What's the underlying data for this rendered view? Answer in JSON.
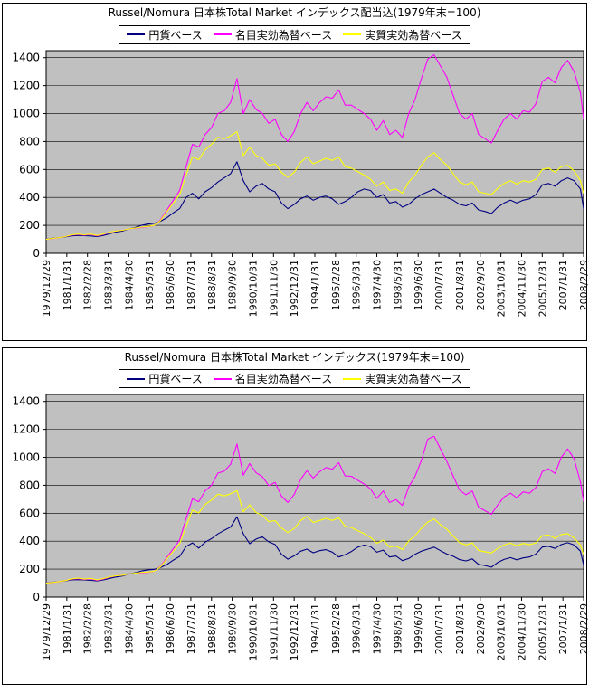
{
  "page": {
    "background": "#ffffff"
  },
  "chart_data": [
    {
      "type": "line",
      "title": "Russel/Nomura 日本株Total Market インデックス配当込(1979年末=100)",
      "plot_bg": "#c0c0c0",
      "grid": "on",
      "legend_position": "top",
      "ylim": [
        0,
        1450
      ],
      "yticks": [
        0,
        200,
        400,
        600,
        800,
        1000,
        1200,
        1400
      ],
      "xtick_step_months": 13,
      "xtick_labels": [
        "1979/12/29",
        "1981/1/31",
        "1982/2/28",
        "1983/3/31",
        "1984/4/30",
        "1985/5/31",
        "1986/6/30",
        "1987/7/31",
        "1988/8/31",
        "1989/9/30",
        "1990/10/31",
        "1991/11/30",
        "1992/12/31",
        "1994/1/31",
        "1995/2/28",
        "1996/3/31",
        "1997/4/30",
        "1998/5/31",
        "1999/6/30",
        "2000/7/31",
        "2001/8/31",
        "2002/9/30",
        "2003/10/31",
        "2004/11/30",
        "2005/12/31",
        "2007/1/31",
        "2008/2/29"
      ],
      "x_months": [
        0,
        4,
        8,
        12,
        16,
        20,
        24,
        28,
        32,
        36,
        40,
        44,
        48,
        52,
        56,
        60,
        64,
        68,
        72,
        76,
        80,
        84,
        88,
        92,
        96,
        100,
        104,
        108,
        112,
        116,
        120,
        124,
        128,
        132,
        136,
        140,
        144,
        148,
        152,
        156,
        160,
        164,
        168,
        172,
        176,
        180,
        184,
        188,
        192,
        196,
        200,
        204,
        208,
        212,
        216,
        220,
        224,
        228,
        232,
        236,
        240,
        244,
        248,
        252,
        256,
        260,
        264,
        268,
        272,
        276,
        280,
        284,
        288,
        292,
        296,
        300,
        304,
        308,
        312,
        316,
        320,
        324,
        328,
        332,
        336,
        338
      ],
      "series": [
        {
          "name": "円貨ベース",
          "color": "#000080",
          "values": [
            100,
            108,
            112,
            118,
            125,
            128,
            126,
            124,
            120,
            128,
            140,
            152,
            160,
            175,
            185,
            200,
            210,
            215,
            230,
            255,
            290,
            320,
            400,
            430,
            390,
            440,
            470,
            510,
            540,
            570,
            655,
            520,
            440,
            480,
            500,
            460,
            440,
            360,
            320,
            350,
            390,
            410,
            380,
            400,
            410,
            390,
            350,
            370,
            400,
            440,
            460,
            450,
            400,
            420,
            360,
            370,
            330,
            350,
            390,
            420,
            440,
            460,
            430,
            400,
            380,
            350,
            340,
            360,
            310,
            300,
            285,
            330,
            360,
            380,
            360,
            380,
            390,
            420,
            490,
            500,
            480,
            520,
            540,
            520,
            460,
            320
          ]
        },
        {
          "name": "名目実効為替ベース",
          "color": "#ff00ff",
          "values": [
            100,
            105,
            112,
            120,
            130,
            135,
            130,
            135,
            125,
            135,
            150,
            160,
            165,
            175,
            180,
            185,
            190,
            200,
            240,
            310,
            380,
            450,
            620,
            780,
            760,
            850,
            900,
            1000,
            1020,
            1080,
            1250,
            1000,
            1100,
            1030,
            1000,
            930,
            960,
            850,
            800,
            870,
            1000,
            1080,
            1020,
            1080,
            1120,
            1110,
            1170,
            1060,
            1060,
            1030,
            1000,
            960,
            880,
            950,
            850,
            880,
            830,
            1000,
            1100,
            1250,
            1390,
            1420,
            1340,
            1260,
            1130,
            1000,
            960,
            1000,
            850,
            820,
            790,
            880,
            960,
            1000,
            960,
            1020,
            1010,
            1070,
            1230,
            1260,
            1220,
            1330,
            1380,
            1300,
            1150,
            960
          ]
        },
        {
          "name": "実質実効為替ベース",
          "color": "#ffff00",
          "values": [
            100,
            106,
            112,
            120,
            132,
            138,
            133,
            138,
            128,
            138,
            152,
            160,
            165,
            175,
            182,
            188,
            192,
            200,
            235,
            300,
            360,
            420,
            560,
            690,
            670,
            740,
            780,
            830,
            820,
            840,
            870,
            700,
            760,
            700,
            680,
            630,
            640,
            580,
            545,
            580,
            650,
            690,
            640,
            660,
            680,
            665,
            690,
            620,
            610,
            585,
            560,
            530,
            480,
            510,
            450,
            460,
            430,
            510,
            560,
            630,
            690,
            720,
            670,
            630,
            570,
            510,
            490,
            510,
            440,
            430,
            420,
            465,
            500,
            520,
            495,
            520,
            510,
            530,
            600,
            610,
            580,
            620,
            630,
            590,
            520,
            430
          ]
        }
      ]
    },
    {
      "type": "line",
      "title": "Russel/Nomura 日本株Total Market インデックス(1979年末=100)",
      "plot_bg": "#c0c0c0",
      "grid": "on",
      "legend_position": "top",
      "ylim": [
        0,
        1450
      ],
      "yticks": [
        0,
        200,
        400,
        600,
        800,
        1000,
        1200,
        1400
      ],
      "xtick_step_months": 13,
      "xtick_labels": [
        "1979/12/29",
        "1981/1/31",
        "1982/2/28",
        "1983/3/31",
        "1984/4/30",
        "1985/5/31",
        "1986/6/30",
        "1987/7/31",
        "1988/8/31",
        "1989/9/30",
        "1990/10/31",
        "1991/11/30",
        "1992/12/31",
        "1994/1/31",
        "1995/2/28",
        "1996/3/31",
        "1997/4/30",
        "1998/5/31",
        "1999/6/30",
        "2000/7/31",
        "2001/8/31",
        "2002/9/30",
        "2003/10/31",
        "2004/11/30",
        "2005/12/31",
        "2007/1/31",
        "2008/2/29"
      ],
      "x_months": [
        0,
        4,
        8,
        12,
        16,
        20,
        24,
        28,
        32,
        36,
        40,
        44,
        48,
        52,
        56,
        60,
        64,
        68,
        72,
        76,
        80,
        84,
        88,
        92,
        96,
        100,
        104,
        108,
        112,
        116,
        120,
        124,
        128,
        132,
        136,
        140,
        144,
        148,
        152,
        156,
        160,
        164,
        168,
        172,
        176,
        180,
        184,
        188,
        192,
        196,
        200,
        204,
        208,
        212,
        216,
        220,
        224,
        228,
        232,
        236,
        240,
        244,
        248,
        252,
        256,
        260,
        264,
        268,
        272,
        276,
        280,
        284,
        288,
        292,
        296,
        300,
        304,
        308,
        312,
        316,
        320,
        324,
        328,
        332,
        336,
        338
      ],
      "series": [
        {
          "name": "円貨ベース",
          "color": "#000080",
          "values": [
            100,
            107,
            111,
            116,
            123,
            125,
            123,
            120,
            116,
            123,
            134,
            144,
            151,
            165,
            174,
            187,
            195,
            199,
            212,
            234,
            265,
            291,
            362,
            388,
            350,
            393,
            418,
            452,
            477,
            501,
            574,
            453,
            382,
            415,
            431,
            395,
            376,
            306,
            271,
            295,
            328,
            343,
            317,
            332,
            339,
            322,
            287,
            303,
            326,
            357,
            372,
            362,
            321,
            336,
            287,
            294,
            261,
            276,
            306,
            328,
            343,
            357,
            332,
            308,
            292,
            268,
            259,
            273,
            234,
            226,
            214,
            247,
            269,
            282,
            267,
            280,
            287,
            308,
            358,
            364,
            348,
            376,
            389,
            373,
            329,
            229
          ]
        },
        {
          "name": "名目実効為替ベース",
          "color": "#ff00ff",
          "values": [
            100,
            104,
            111,
            118,
            128,
            132,
            126,
            131,
            120,
            129,
            143,
            152,
            156,
            165,
            169,
            173,
            177,
            185,
            221,
            284,
            347,
            409,
            562,
            703,
            682,
            760,
            801,
            887,
            901,
            950,
            1095,
            872,
            955,
            891,
            861,
            798,
            820,
            723,
            678,
            734,
            841,
            904,
            851,
            897,
            927,
            915,
            961,
            867,
            864,
            836,
            809,
            773,
            706,
            759,
            677,
            698,
            656,
            788,
            863,
            977,
            1130,
            1150,
            1060,
            970,
            867,
            765,
            732,
            759,
            643,
            618,
            593,
            659,
            716,
            743,
            711,
            753,
            743,
            784,
            898,
            917,
            885,
            1000,
            1060,
            990,
            823,
            686
          ]
        },
        {
          "name": "実質実効為替ベース",
          "color": "#ffff00",
          "values": [
            100,
            105,
            111,
            118,
            130,
            135,
            129,
            134,
            123,
            132,
            145,
            152,
            156,
            165,
            171,
            176,
            179,
            185,
            217,
            275,
            329,
            382,
            507,
            622,
            602,
            662,
            694,
            736,
            724,
            739,
            762,
            610,
            660,
            605,
            586,
            540,
            547,
            494,
            462,
            490,
            547,
            578,
            534,
            548,
            563,
            548,
            567,
            507,
            497,
            475,
            453,
            427,
            385,
            408,
            358,
            365,
            340,
            402,
            439,
            492,
            537,
            559,
            518,
            485,
            437,
            390,
            373,
            387,
            333,
            324,
            315,
            348,
            373,
            386,
            367,
            384,
            375,
            388,
            438,
            444,
            421,
            448,
            454,
            424,
            372,
            307
          ]
        }
      ]
    }
  ]
}
